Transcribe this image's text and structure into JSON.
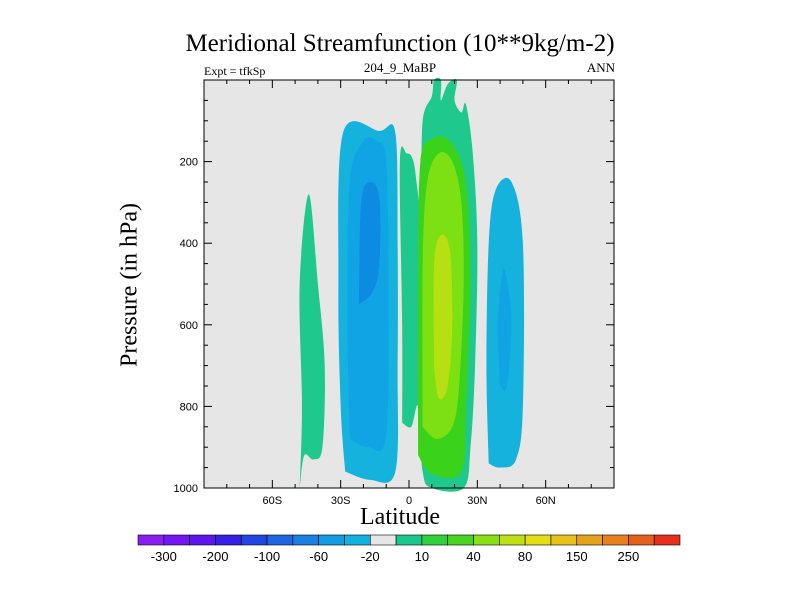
{
  "chart_data": {
    "type": "contour",
    "title": "Meridional Streamfunction (10**9kg/m-2)",
    "subtitle_left": "Expt = tfkSp",
    "subtitle_center": "204_9_MaBP",
    "subtitle_right": "ANN",
    "xlabel": "Latitude",
    "ylabel": "Pressure (in hPa)",
    "xlim": [
      -90,
      90
    ],
    "ylim": [
      1000,
      0
    ],
    "xticks": [
      {
        "value": -60,
        "label": "60S"
      },
      {
        "value": -30,
        "label": "30S"
      },
      {
        "value": 0,
        "label": "0"
      },
      {
        "value": 30,
        "label": "30N"
      },
      {
        "value": 60,
        "label": "60N"
      }
    ],
    "yticks": [
      {
        "value": 200,
        "label": "200"
      },
      {
        "value": 400,
        "label": "400"
      },
      {
        "value": 600,
        "label": "600"
      },
      {
        "value": 800,
        "label": "800"
      },
      {
        "value": 1000,
        "label": "1000"
      }
    ],
    "background_color": "#e6e6e6",
    "contour_regions": [
      {
        "name": "southern-midlat-positive",
        "level": 10,
        "color": "#1fc98e",
        "points": [
          [
            -48,
            1000
          ],
          [
            -47,
            800
          ],
          [
            -48,
            500
          ],
          [
            -44,
            280
          ],
          [
            -40,
            500
          ],
          [
            -37,
            700
          ],
          [
            -38,
            900
          ],
          [
            -42,
            930
          ],
          [
            -46,
            920
          ],
          [
            -48,
            1000
          ]
        ]
      },
      {
        "name": "southern-cell-outer",
        "level": -20,
        "color": "#15b2de",
        "points": [
          [
            -28,
            960
          ],
          [
            -30,
            800
          ],
          [
            -31,
            500
          ],
          [
            -29,
            130
          ],
          [
            -13,
            125
          ],
          [
            -6,
            130
          ],
          [
            -5,
            400
          ],
          [
            -5,
            700
          ],
          [
            -6,
            960
          ],
          [
            -17,
            980
          ],
          [
            -28,
            960
          ]
        ]
      },
      {
        "name": "southern-cell-inner",
        "level": -60,
        "color": "#10a4e4",
        "points": [
          [
            -26,
            880
          ],
          [
            -27,
            600
          ],
          [
            -26,
            250
          ],
          [
            -20,
            150
          ],
          [
            -14,
            150
          ],
          [
            -10,
            200
          ],
          [
            -9,
            500
          ],
          [
            -10,
            870
          ],
          [
            -18,
            900
          ],
          [
            -26,
            880
          ]
        ]
      },
      {
        "name": "southern-cell-core",
        "level": -100,
        "color": "#0c8be0",
        "points": [
          [
            -22,
            550
          ],
          [
            -21,
            300
          ],
          [
            -17,
            250
          ],
          [
            -13,
            290
          ],
          [
            -13,
            450
          ],
          [
            -16,
            520
          ],
          [
            -22,
            550
          ]
        ]
      },
      {
        "name": "tropical-cell-outer",
        "level": 10,
        "color": "#1fc98e",
        "points": [
          [
            -3,
            840
          ],
          [
            -3,
            600
          ],
          [
            -4,
            200
          ],
          [
            -1,
            180
          ],
          [
            2,
            200
          ],
          [
            5,
            300
          ],
          [
            6,
            100
          ],
          [
            10,
            40
          ],
          [
            11,
            0
          ],
          [
            14,
            0
          ],
          [
            14,
            50
          ],
          [
            17,
            10
          ],
          [
            21,
            0
          ],
          [
            20,
            50
          ],
          [
            23,
            80
          ],
          [
            25,
            60
          ],
          [
            28,
            180
          ],
          [
            30,
            400
          ],
          [
            29,
            700
          ],
          [
            27,
            900
          ],
          [
            24,
            1000
          ],
          [
            10,
            1000
          ],
          [
            6,
            960
          ],
          [
            4,
            800
          ],
          [
            1,
            850
          ],
          [
            -3,
            840
          ]
        ]
      },
      {
        "name": "tropical-cell-40",
        "level": 40,
        "color": "#3ad21b",
        "points": [
          [
            4,
            920
          ],
          [
            4,
            500
          ],
          [
            5,
            200
          ],
          [
            10,
            145
          ],
          [
            18,
            150
          ],
          [
            25,
            250
          ],
          [
            27,
            500
          ],
          [
            25,
            800
          ],
          [
            23,
            960
          ],
          [
            10,
            965
          ],
          [
            4,
            920
          ]
        ]
      },
      {
        "name": "tropical-cell-80",
        "level": 80,
        "color": "#7de012",
        "points": [
          [
            6,
            850
          ],
          [
            6,
            450
          ],
          [
            8,
            250
          ],
          [
            13,
            180
          ],
          [
            19,
            200
          ],
          [
            23,
            300
          ],
          [
            24,
            500
          ],
          [
            22,
            750
          ],
          [
            19,
            850
          ],
          [
            12,
            880
          ],
          [
            6,
            850
          ]
        ]
      },
      {
        "name": "tropical-cell-core",
        "level": 150,
        "color": "#b7e012",
        "points": [
          [
            11,
            700
          ],
          [
            11,
            450
          ],
          [
            14,
            380
          ],
          [
            18,
            420
          ],
          [
            19,
            600
          ],
          [
            17,
            750
          ],
          [
            13,
            780
          ],
          [
            11,
            700
          ]
        ]
      },
      {
        "name": "northern-cell-outer",
        "level": -20,
        "color": "#15b2de",
        "points": [
          [
            35,
            940
          ],
          [
            34,
            700
          ],
          [
            35,
            400
          ],
          [
            38,
            270
          ],
          [
            45,
            250
          ],
          [
            50,
            400
          ],
          [
            50,
            800
          ],
          [
            47,
            930
          ],
          [
            40,
            950
          ],
          [
            35,
            940
          ]
        ]
      },
      {
        "name": "northern-cell-inner",
        "level": -60,
        "color": "#10a4e4",
        "points": [
          [
            40,
            750
          ],
          [
            39,
            600
          ],
          [
            41,
            470
          ],
          [
            43,
            490
          ],
          [
            45,
            600
          ],
          [
            43,
            750
          ],
          [
            40,
            750
          ]
        ]
      }
    ],
    "colorbar": {
      "colors": [
        "#8a1df0",
        "#7416f3",
        "#5c16ec",
        "#3620e6",
        "#2346e3",
        "#1f67e2",
        "#1a81e3",
        "#139ce6",
        "#12b1df",
        "#e6e6e6",
        "#1ac78c",
        "#31d13a",
        "#48d420",
        "#86e012",
        "#bfe014",
        "#e2e014",
        "#e6c21a",
        "#e6a21a",
        "#e8801c",
        "#e6601c",
        "#e6301c"
      ],
      "labels": [
        "-300",
        "-200",
        "-100",
        "-60",
        "-20",
        "10",
        "40",
        "80",
        "150",
        "250"
      ]
    }
  }
}
